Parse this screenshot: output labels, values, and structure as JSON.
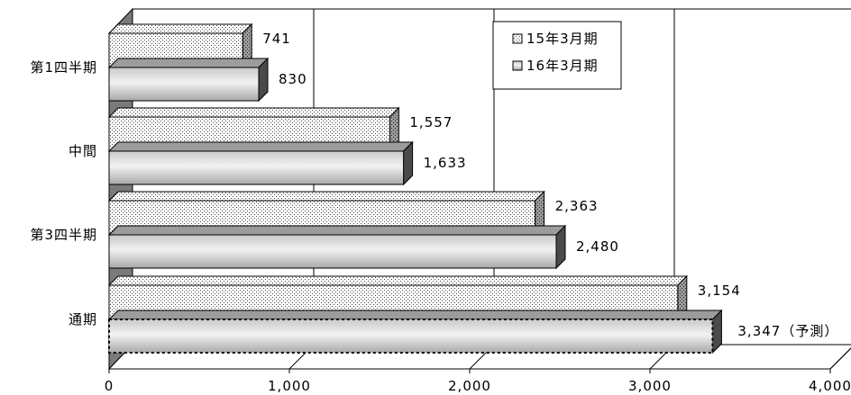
{
  "chart_data": {
    "type": "bar",
    "orientation": "horizontal",
    "three_d": true,
    "categories": [
      "第1四半期",
      "中間",
      "第3四半期",
      "通期"
    ],
    "series": [
      {
        "name": "15年3月期",
        "values": [
          741,
          1557,
          2363,
          3154
        ],
        "value_labels": [
          "741",
          "1,557",
          "2,363",
          "3,154"
        ],
        "fill": "dotted",
        "color": "#ffffff"
      },
      {
        "name": "16年3月期",
        "values": [
          830,
          1633,
          2480,
          3347
        ],
        "value_labels": [
          "830",
          "1,633",
          "2,480",
          "3,347（予測）"
        ],
        "fill": "gradient-gray",
        "color": "#b8b8b8"
      }
    ],
    "xlim": [
      0,
      4000
    ],
    "xticks": [
      "0",
      "1,000",
      "2,000",
      "3,000",
      "4,000"
    ],
    "tick_values": [
      0,
      1000,
      2000,
      3000,
      4000
    ],
    "grid": true,
    "legend": "top-right",
    "forecast_category": "通期"
  }
}
